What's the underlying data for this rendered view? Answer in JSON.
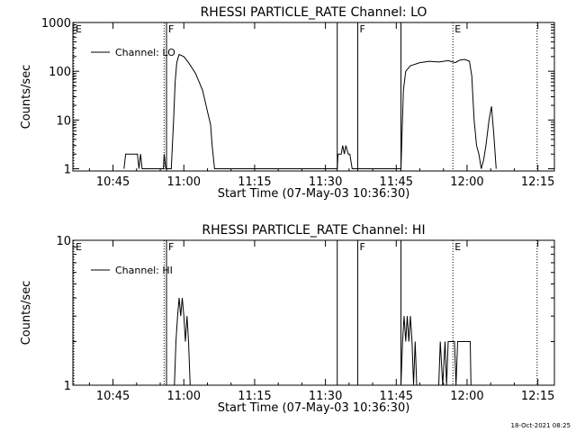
{
  "timestamp": "18-Oct-2021 08:25",
  "chart_data": [
    {
      "type": "line",
      "title": "RHESSI PARTICLE_RATE Channel: LO",
      "xlabel": "Start Time (07-May-03 10:36:30)",
      "ylabel": "Counts/sec",
      "yscale": "log",
      "ylim": [
        0.9,
        1000
      ],
      "y_ticks": [
        {
          "value": 1,
          "label": "1"
        },
        {
          "value": 10,
          "label": "10"
        },
        {
          "value": 100,
          "label": "100"
        },
        {
          "value": 1000,
          "label": "1000"
        }
      ],
      "x_ticks": [
        "10:45",
        "11:00",
        "11:15",
        "11:30",
        "11:45",
        "12:00",
        "12:15"
      ],
      "legend": "Channel: LO",
      "legend_position": "top-left",
      "flag_lines": [
        {
          "time": "10:36:30",
          "label": "E",
          "style": "dotted"
        },
        {
          "time": "10:55:50",
          "label": "",
          "style": "dotted"
        },
        {
          "time": "10:56:20",
          "label": "F",
          "style": "solid"
        },
        {
          "time": "11:32:30",
          "label": "",
          "style": "solid"
        },
        {
          "time": "11:36:50",
          "label": "F",
          "style": "solid"
        },
        {
          "time": "11:46:00",
          "label": "",
          "style": "solid"
        },
        {
          "time": "11:57:00",
          "label": "E",
          "style": "dotted"
        },
        {
          "time": "12:14:50",
          "label": "",
          "style": "dotted"
        }
      ],
      "series": [
        {
          "values": [
            [
              "10:47:20",
              1
            ],
            [
              "10:47:40",
              2
            ],
            [
              "10:50:10",
              2
            ],
            [
              "10:50:30",
              1
            ],
            [
              "10:50:50",
              2
            ],
            [
              "10:51:10",
              1
            ],
            [
              "10:55:40",
              1
            ],
            [
              "10:55:50",
              2
            ],
            [
              "10:56:10",
              1
            ],
            [
              "10:57:20",
              1
            ],
            [
              "10:57:50",
              10
            ],
            [
              "10:58:10",
              60
            ],
            [
              "10:58:30",
              150
            ],
            [
              "10:59:00",
              220
            ],
            [
              "11:00:00",
              200
            ],
            [
              "11:01:00",
              150
            ],
            [
              "11:02:30",
              90
            ],
            [
              "11:04:00",
              40
            ],
            [
              "11:05:00",
              15
            ],
            [
              "11:05:40",
              8
            ],
            [
              "11:06:00",
              3
            ],
            [
              "11:06:30",
              1
            ],
            [
              "11:32:30",
              1
            ],
            [
              "11:32:40",
              2
            ],
            [
              "11:33:20",
              2
            ],
            [
              "11:33:40",
              3
            ],
            [
              "11:34:00",
              2
            ],
            [
              "11:34:20",
              3
            ],
            [
              "11:34:50",
              2
            ],
            [
              "11:35:10",
              2
            ],
            [
              "11:35:40",
              1
            ],
            [
              "11:36:30",
              1
            ],
            [
              "11:46:00",
              1
            ],
            [
              "11:46:30",
              40
            ],
            [
              "11:47:00",
              100
            ],
            [
              "11:48:00",
              130
            ],
            [
              "11:50:00",
              150
            ],
            [
              "11:52:00",
              160
            ],
            [
              "11:54:00",
              155
            ],
            [
              "11:56:00",
              165
            ],
            [
              "11:57:30",
              150
            ],
            [
              "11:58:30",
              170
            ],
            [
              "11:59:30",
              175
            ],
            [
              "12:00:30",
              160
            ],
            [
              "12:01:00",
              80
            ],
            [
              "12:01:30",
              10
            ],
            [
              "12:02:00",
              3
            ],
            [
              "12:02:30",
              2
            ],
            [
              "12:03:00",
              1
            ],
            [
              "12:03:30",
              1.5
            ],
            [
              "12:04:00",
              3
            ],
            [
              "12:04:40",
              10
            ],
            [
              "12:05:10",
              19
            ],
            [
              "12:05:40",
              5
            ],
            [
              "12:06:10",
              1
            ]
          ]
        }
      ]
    },
    {
      "type": "line",
      "title": "RHESSI PARTICLE_RATE Channel: HI",
      "xlabel": "Start Time (07-May-03 10:36:30)",
      "ylabel": "Counts/sec",
      "yscale": "log",
      "ylim": [
        1,
        10
      ],
      "y_ticks": [
        {
          "value": 1,
          "label": "1"
        },
        {
          "value": 10,
          "label": "10"
        }
      ],
      "x_ticks": [
        "10:45",
        "11:00",
        "11:15",
        "11:30",
        "11:45",
        "12:00",
        "12:15"
      ],
      "legend": "Channel: HI",
      "legend_position": "top-left",
      "flag_lines": [
        {
          "time": "10:36:30",
          "label": "E",
          "style": "dotted"
        },
        {
          "time": "10:55:50",
          "label": "",
          "style": "dotted"
        },
        {
          "time": "10:56:20",
          "label": "F",
          "style": "solid"
        },
        {
          "time": "11:32:30",
          "label": "",
          "style": "solid"
        },
        {
          "time": "11:36:50",
          "label": "F",
          "style": "solid"
        },
        {
          "time": "11:46:00",
          "label": "",
          "style": "solid"
        },
        {
          "time": "11:57:00",
          "label": "E",
          "style": "dotted"
        },
        {
          "time": "12:14:50",
          "label": "",
          "style": "dotted"
        }
      ],
      "series": [
        {
          "values": [
            [
              "10:58:00",
              1
            ],
            [
              "10:58:20",
              2
            ],
            [
              "10:58:40",
              3
            ],
            [
              "10:59:00",
              4
            ],
            [
              "10:59:20",
              3
            ],
            [
              "10:59:40",
              4
            ],
            [
              "11:00:00",
              3
            ],
            [
              "11:00:20",
              2
            ],
            [
              "11:00:40",
              3
            ],
            [
              "11:01:00",
              2
            ],
            [
              "11:01:20",
              1
            ],
            [
              "11:46:00",
              1
            ],
            [
              "11:46:20",
              2
            ],
            [
              "11:46:40",
              3
            ],
            [
              "11:47:00",
              2
            ],
            [
              "11:47:20",
              3
            ],
            [
              "11:47:40",
              2
            ],
            [
              "11:48:00",
              3
            ],
            [
              "11:48:20",
              2
            ],
            [
              "11:48:40",
              1
            ],
            [
              "11:49:00",
              2
            ],
            [
              "11:49:20",
              1
            ],
            [
              "11:54:00",
              1
            ],
            [
              "11:54:20",
              2
            ],
            [
              "11:54:50",
              1
            ],
            [
              "11:55:20",
              2
            ],
            [
              "11:55:40",
              1
            ],
            [
              "11:56:00",
              2
            ],
            [
              "11:57:20",
              2
            ],
            [
              "11:57:40",
              1
            ],
            [
              "11:58:00",
              2
            ],
            [
              "12:00:40",
              2
            ],
            [
              "12:00:50",
              1
            ]
          ]
        }
      ]
    }
  ]
}
